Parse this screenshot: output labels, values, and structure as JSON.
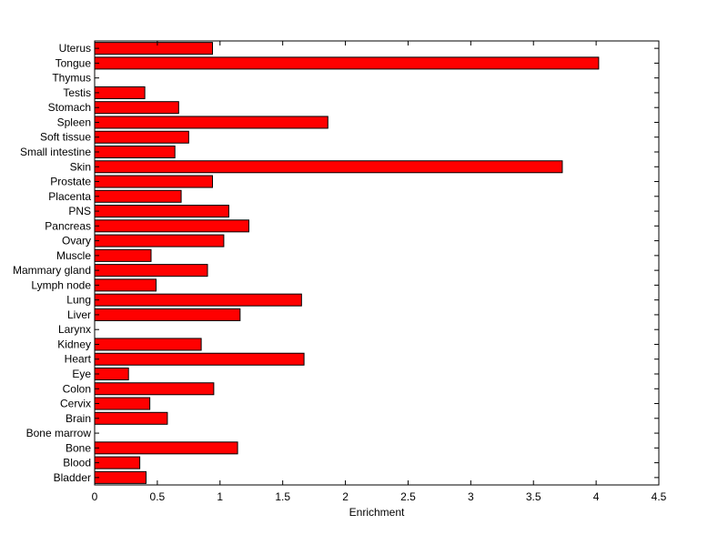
{
  "chart_data": {
    "type": "bar",
    "orientation": "horizontal",
    "xlabel": "Enrichment",
    "ylabel": "",
    "title": "",
    "xlim": [
      0,
      4.5
    ],
    "xticks": [
      0,
      0.5,
      1,
      1.5,
      2,
      2.5,
      3,
      3.5,
      4,
      4.5
    ],
    "xtick_labels": [
      "0",
      "0.5",
      "1",
      "1.5",
      "2",
      "2.5",
      "3",
      "3.5",
      "4",
      "4.5"
    ],
    "grid": false,
    "bar_color": "#ff0000",
    "bar_edge_color": "#000000",
    "categories": [
      "Bladder",
      "Blood",
      "Bone",
      "Bone marrow",
      "Brain",
      "Cervix",
      "Colon",
      "Eye",
      "Heart",
      "Kidney",
      "Larynx",
      "Liver",
      "Lung",
      "Lymph node",
      "Mammary gland",
      "Muscle",
      "Ovary",
      "Pancreas",
      "PNS",
      "Placenta",
      "Prostate",
      "Skin",
      "Small intestine",
      "Soft tissue",
      "Spleen",
      "Stomach",
      "Testis",
      "Thymus",
      "Tongue",
      "Uterus"
    ],
    "values": [
      0.41,
      0.36,
      1.14,
      0,
      0.58,
      0.44,
      0.95,
      0.27,
      1.67,
      0.85,
      0,
      1.16,
      1.65,
      0.49,
      0.9,
      0.45,
      1.03,
      1.23,
      1.07,
      0.69,
      0.94,
      3.73,
      0.64,
      0.75,
      1.86,
      0.67,
      0.4,
      0,
      4.02,
      0.94
    ]
  }
}
